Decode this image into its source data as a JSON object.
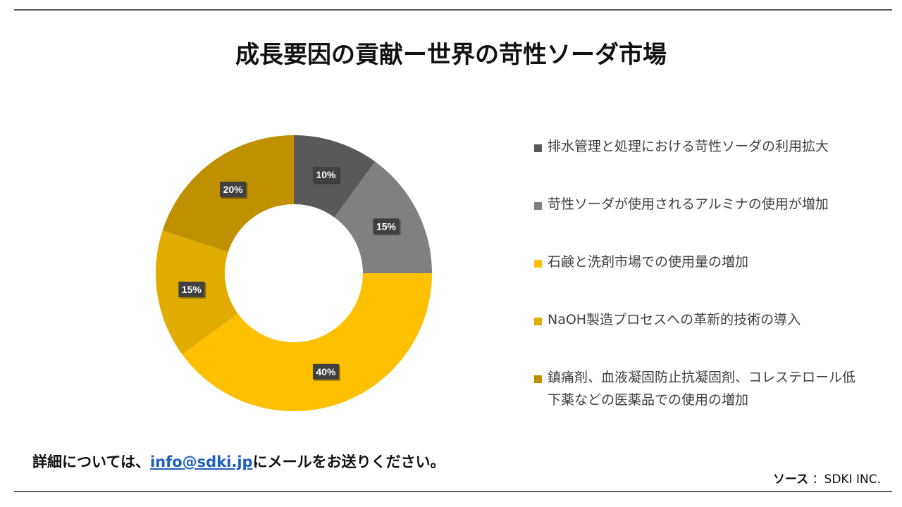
{
  "title": "成長要因の貢献ー世界の苛性ソーダ市場",
  "chart_data": {
    "type": "pie",
    "categories": [
      "排水管理と処理における苛性ソーダの利用拡大",
      "苛性ソーダが使用されるアルミナの使用が増加",
      "石鹸と洗剤市場での使用量の増加",
      "NaOH製造プロセスへの革新的技術の導入",
      "鎮痛剤、血液凝固防止抗凝固剤、コレステロール低下薬などの医薬品での使用の増加"
    ],
    "values": [
      10,
      15,
      40,
      15,
      20
    ],
    "data_labels": [
      "10%",
      "15%",
      "40%",
      "15%",
      "20%"
    ],
    "colors": [
      "#595959",
      "#808080",
      "#ffc000",
      "#e0ac00",
      "#bf9000"
    ],
    "donut": true,
    "legend_position": "right"
  },
  "footer": {
    "prefix": "詳細については、",
    "email": "info@sdki.jp",
    "suffix": "にメールをお送りください。"
  },
  "source": {
    "label": "ソース",
    "value": "：SDKI INC."
  }
}
